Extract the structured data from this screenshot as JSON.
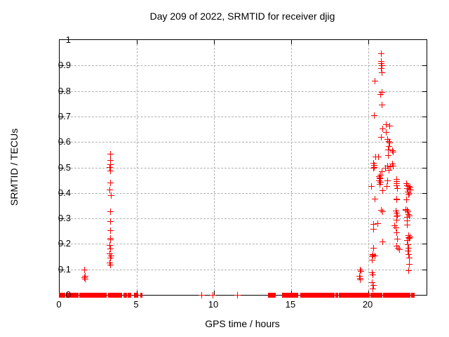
{
  "colors": {
    "marker": "#ff0000",
    "grid": "#b0b0b0",
    "axis": "#000000",
    "background": "#ffffff",
    "text": "#000000"
  },
  "chart_data": {
    "type": "scatter",
    "title": "Day 209 of 2022, SRMTID for receiver djig",
    "xlabel": "GPS time / hours",
    "ylabel": "SRMTID / TECUs",
    "xlim": [
      0,
      23.77
    ],
    "ylim": [
      0,
      1
    ],
    "grid": true,
    "legend": "none",
    "marker": "plus",
    "marker_color": "#ff0000",
    "xticks": [
      0,
      5,
      10,
      15,
      20
    ],
    "xtick_labels": [
      "0",
      "5",
      "10",
      "15",
      "20"
    ],
    "yticks": [
      0,
      0.1,
      0.2,
      0.3,
      0.4,
      0.5,
      0.6,
      0.7,
      0.8,
      0.9,
      1
    ],
    "ytick_labels": [
      "0",
      "0.1",
      "0.2",
      "0.3",
      "0.4",
      "0.5",
      "0.6",
      "0.7",
      "0.8",
      "0.9",
      "1"
    ],
    "points": [
      [
        1.61,
        0.1
      ],
      [
        1.64,
        0.075
      ],
      [
        1.59,
        0.068
      ],
      [
        1.62,
        0.062
      ],
      [
        3.25,
        0.554
      ],
      [
        3.28,
        0.529
      ],
      [
        3.27,
        0.512
      ],
      [
        3.24,
        0.501
      ],
      [
        3.29,
        0.488
      ],
      [
        3.27,
        0.441
      ],
      [
        3.22,
        0.413
      ],
      [
        3.3,
        0.391
      ],
      [
        3.25,
        0.328
      ],
      [
        3.28,
        0.289
      ],
      [
        3.27,
        0.254
      ],
      [
        3.29,
        0.223
      ],
      [
        3.25,
        0.218
      ],
      [
        3.24,
        0.196
      ],
      [
        3.28,
        0.182
      ],
      [
        3.23,
        0.163
      ],
      [
        3.3,
        0.154
      ],
      [
        3.26,
        0.146
      ],
      [
        3.24,
        0.127
      ],
      [
        3.29,
        0.118
      ],
      [
        9.2,
        0.0
      ],
      [
        9.9,
        0.0
      ],
      [
        11.5,
        0.0
      ],
      [
        19.45,
        0.099
      ],
      [
        19.5,
        0.093
      ],
      [
        19.42,
        0.074
      ],
      [
        19.47,
        0.066
      ],
      [
        19.44,
        0.061
      ],
      [
        20.25,
        0.157
      ],
      [
        20.22,
        0.151
      ],
      [
        20.24,
        0.138
      ],
      [
        20.23,
        0.089
      ],
      [
        20.26,
        0.079
      ],
      [
        20.4,
        0.154
      ],
      [
        20.21,
        0.049
      ],
      [
        20.3,
        0.039
      ],
      [
        20.28,
        0.025
      ],
      [
        20.82,
        0.948
      ],
      [
        20.82,
        0.917
      ],
      [
        20.83,
        0.908
      ],
      [
        20.86,
        0.901
      ],
      [
        20.82,
        0.889
      ],
      [
        20.85,
        0.872
      ],
      [
        20.4,
        0.84
      ],
      [
        20.86,
        0.796
      ],
      [
        20.77,
        0.789
      ],
      [
        20.86,
        0.746
      ],
      [
        20.38,
        0.706
      ],
      [
        21.14,
        0.669
      ],
      [
        21.36,
        0.664
      ],
      [
        20.91,
        0.653
      ],
      [
        21.14,
        0.639
      ],
      [
        20.82,
        0.62
      ],
      [
        21.23,
        0.612
      ],
      [
        21.32,
        0.603
      ],
      [
        21.34,
        0.598
      ],
      [
        21.32,
        0.584
      ],
      [
        21.27,
        0.57
      ],
      [
        21.55,
        0.567
      ],
      [
        21.6,
        0.562
      ],
      [
        21.27,
        0.548
      ],
      [
        20.45,
        0.543
      ],
      [
        20.64,
        0.543
      ],
      [
        20.33,
        0.518
      ],
      [
        20.36,
        0.511
      ],
      [
        21.55,
        0.515
      ],
      [
        20.37,
        0.501
      ],
      [
        20.3,
        0.5
      ],
      [
        21.1,
        0.499
      ],
      [
        21.4,
        0.504
      ],
      [
        21.6,
        0.507
      ],
      [
        21.23,
        0.507
      ],
      [
        21.32,
        0.49
      ],
      [
        20.86,
        0.485
      ],
      [
        20.77,
        0.471
      ],
      [
        20.7,
        0.466
      ],
      [
        20.73,
        0.46
      ],
      [
        20.74,
        0.457
      ],
      [
        20.7,
        0.449
      ],
      [
        20.77,
        0.443
      ],
      [
        20.71,
        0.435
      ],
      [
        20.2,
        0.427
      ],
      [
        21.23,
        0.449
      ],
      [
        21.2,
        0.427
      ],
      [
        20.9,
        0.41
      ],
      [
        20.4,
        0.377
      ],
      [
        20.8,
        0.333
      ],
      [
        20.9,
        0.328
      ],
      [
        20.33,
        0.278
      ],
      [
        20.6,
        0.281
      ],
      [
        20.33,
        0.259
      ],
      [
        20.9,
        0.209
      ],
      [
        20.32,
        0.185
      ],
      [
        20.27,
        0.16
      ],
      [
        21.8,
        0.454
      ],
      [
        21.8,
        0.446
      ],
      [
        21.81,
        0.438
      ],
      [
        21.82,
        0.429
      ],
      [
        21.84,
        0.42
      ],
      [
        21.82,
        0.377
      ],
      [
        21.8,
        0.374
      ],
      [
        21.78,
        0.33
      ],
      [
        21.82,
        0.322
      ],
      [
        21.85,
        0.315
      ],
      [
        21.8,
        0.308
      ],
      [
        21.8,
        0.295
      ],
      [
        21.7,
        0.272
      ],
      [
        21.78,
        0.265
      ],
      [
        21.8,
        0.245
      ],
      [
        21.87,
        0.22
      ],
      [
        21.9,
        0.185
      ],
      [
        21.8,
        0.193
      ],
      [
        21.98,
        0.179
      ],
      [
        22.45,
        0.438
      ],
      [
        22.5,
        0.43
      ],
      [
        22.58,
        0.428
      ],
      [
        22.66,
        0.424
      ],
      [
        22.52,
        0.418
      ],
      [
        22.62,
        0.414
      ],
      [
        22.72,
        0.412
      ],
      [
        22.55,
        0.405
      ],
      [
        22.65,
        0.4
      ],
      [
        22.6,
        0.394
      ],
      [
        22.45,
        0.375
      ],
      [
        22.4,
        0.333
      ],
      [
        22.42,
        0.336
      ],
      [
        22.5,
        0.333
      ],
      [
        22.55,
        0.329
      ],
      [
        22.58,
        0.318
      ],
      [
        22.62,
        0.312
      ],
      [
        22.5,
        0.306
      ],
      [
        22.5,
        0.292
      ],
      [
        22.5,
        0.275
      ],
      [
        22.58,
        0.234
      ],
      [
        22.66,
        0.23
      ],
      [
        22.61,
        0.226
      ],
      [
        22.64,
        0.222
      ],
      [
        22.5,
        0.215
      ],
      [
        22.55,
        0.198
      ],
      [
        22.6,
        0.185
      ],
      [
        22.56,
        0.174
      ],
      [
        22.6,
        0.16
      ],
      [
        22.65,
        0.146
      ],
      [
        22.62,
        0.121
      ],
      [
        22.58,
        0.096
      ]
    ],
    "zero_segments": [
      [
        0.02,
        0.33
      ],
      [
        0.45,
        1.18
      ],
      [
        1.32,
        1.52
      ],
      [
        1.57,
        2.08
      ],
      [
        2.12,
        2.98
      ],
      [
        3.2,
        4.0
      ],
      [
        4.17,
        4.32
      ],
      [
        4.47,
        4.58
      ],
      [
        4.85,
        5.05
      ],
      [
        5.25,
        5.33
      ],
      [
        13.55,
        13.95
      ],
      [
        14.45,
        14.55
      ],
      [
        14.65,
        15.4
      ],
      [
        15.62,
        16.7
      ],
      [
        16.78,
        17.5
      ],
      [
        17.6,
        17.77
      ],
      [
        17.9,
        17.99
      ],
      [
        18.15,
        18.82
      ],
      [
        18.9,
        19.0
      ],
      [
        19.05,
        20.05
      ],
      [
        20.18,
        20.32
      ],
      [
        20.4,
        20.55
      ],
      [
        20.62,
        20.88
      ],
      [
        21.0,
        21.28
      ],
      [
        21.33,
        21.9
      ],
      [
        22.0,
        22.2
      ],
      [
        22.27,
        22.68
      ],
      [
        22.8,
        22.95
      ]
    ]
  }
}
